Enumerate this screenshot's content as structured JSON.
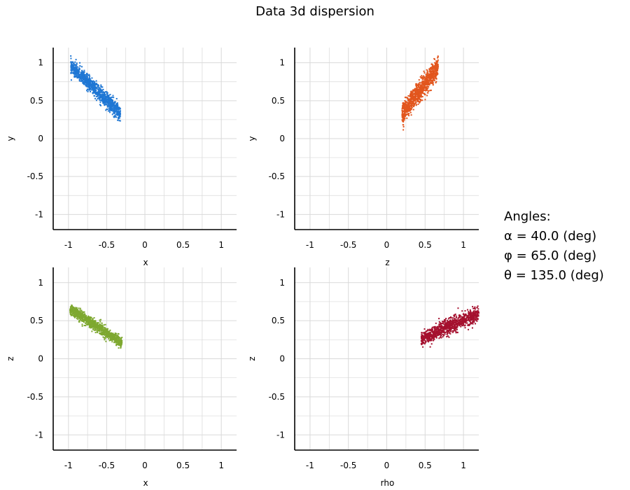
{
  "figure": {
    "title": "Data 3d dispersion",
    "angles": {
      "heading": "Angles:",
      "alpha": "α = 40.0 (deg)",
      "phi": "φ = 65.0 (deg)",
      "theta": "θ = 135.0 (deg)"
    }
  },
  "chart_data": [
    {
      "type": "scatter",
      "xlabel": "x",
      "ylabel": "y",
      "xlim": [
        -1.2,
        1.2
      ],
      "ylim": [
        -1.2,
        1.2
      ],
      "xticks": [
        -1,
        -0.5,
        0,
        0.5,
        1
      ],
      "yticks": [
        -1,
        -0.5,
        0,
        0.5,
        1
      ],
      "tick_labels": [
        "-1",
        "-0.5",
        "0",
        "0.5",
        "1"
      ],
      "grid": true,
      "color": "#1f77d4",
      "cloud": {
        "x_range": [
          -0.97,
          -0.32
        ],
        "center": [
          -0.64,
          0.64
        ],
        "slope": -0.95,
        "spread": 0.05,
        "n": 1000
      }
    },
    {
      "type": "scatter",
      "xlabel": "z",
      "ylabel": "y",
      "xlim": [
        -1.2,
        1.2
      ],
      "ylim": [
        -1.2,
        1.2
      ],
      "xticks": [
        -1,
        -0.5,
        0,
        0.5,
        1
      ],
      "yticks": [
        -1,
        -0.5,
        0,
        0.5,
        1
      ],
      "tick_labels": [
        "-1",
        "-0.5",
        "0",
        "0.5",
        "1"
      ],
      "grid": true,
      "color": "#e2561e",
      "cloud": {
        "x_range": [
          0.2,
          0.67
        ],
        "center": [
          0.44,
          0.64
        ],
        "slope": 1.3,
        "spread": 0.07,
        "n": 1000
      }
    },
    {
      "type": "scatter",
      "xlabel": "x",
      "ylabel": "z",
      "xlim": [
        -1.2,
        1.2
      ],
      "ylim": [
        -1.2,
        1.2
      ],
      "xticks": [
        -1,
        -0.5,
        0,
        0.5,
        1
      ],
      "yticks": [
        -1,
        -0.5,
        0,
        0.5,
        1
      ],
      "tick_labels": [
        "-1",
        "-0.5",
        "0",
        "0.5",
        "1"
      ],
      "grid": true,
      "color": "#7ea830",
      "cloud": {
        "x_range": [
          -0.98,
          -0.3
        ],
        "center": [
          -0.64,
          0.43
        ],
        "slope": -0.66,
        "spread": 0.035,
        "n": 1000
      }
    },
    {
      "type": "scatter",
      "xlabel": "rho",
      "ylabel": "z",
      "xlim": [
        -1.2,
        1.2
      ],
      "ylim": [
        -1.2,
        1.2
      ],
      "xticks": [
        -1,
        -0.5,
        0,
        0.5,
        1
      ],
      "yticks": [
        -1,
        -0.5,
        0,
        0.5,
        1
      ],
      "tick_labels": [
        "-1",
        "-0.5",
        "0",
        "0.5",
        "1"
      ],
      "grid": true,
      "color": "#a5112f",
      "cloud": {
        "x_range": [
          0.45,
          1.2
        ],
        "center": [
          0.83,
          0.43
        ],
        "slope": 0.45,
        "spread": 0.05,
        "n": 1000
      }
    }
  ]
}
